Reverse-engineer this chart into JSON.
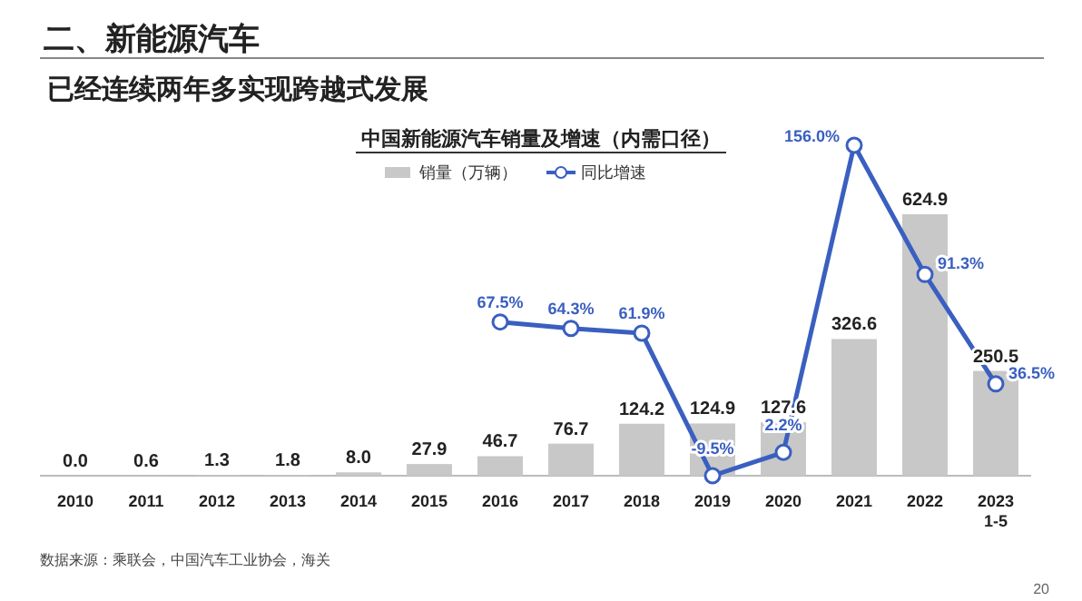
{
  "chart_data": {
    "type": "bar",
    "title": "中国新能源汽车销量及增速（内需口径）",
    "subtitle": "已经连续两年多实现跨越式发展",
    "annotations": [
      "二、新能源汽车",
      "数据来源：乘联会，中国汽车工业协会，海关",
      "20"
    ],
    "categories": [
      "2010",
      "2011",
      "2012",
      "2013",
      "2014",
      "2015",
      "2016",
      "2017",
      "2018",
      "2019",
      "2020",
      "2021",
      "2022",
      "2023\n1-5"
    ],
    "series": [
      {
        "name": "销量（万辆）",
        "color": "#c8c8c8",
        "values": [
          0.0,
          0.6,
          1.3,
          1.8,
          8.0,
          27.9,
          46.7,
          76.7,
          124.2,
          124.9,
          127.6,
          326.6,
          624.9,
          250.5
        ],
        "value_labels": [
          "0.0",
          "0.6",
          "1.3",
          "1.8",
          "8.0",
          "27.9",
          "46.7",
          "76.7",
          "124.2",
          "124.9",
          "127.6",
          "326.6",
          "624.9",
          "250.5"
        ]
      },
      {
        "name": "同比增速",
        "type": "line",
        "axis": "y2",
        "color": "#3a5fc0",
        "marker": "circle",
        "values": [
          null,
          null,
          null,
          null,
          null,
          null,
          67.5,
          64.3,
          61.9,
          -9.5,
          2.2,
          156.0,
          91.3,
          36.5
        ],
        "value_labels": [
          null,
          null,
          null,
          null,
          null,
          null,
          "67.5%",
          "64.3%",
          "61.9%",
          "-9.5%",
          "2.2%",
          "156.0%",
          "91.3%",
          "36.5%"
        ]
      }
    ],
    "legend": "top"
  }
}
